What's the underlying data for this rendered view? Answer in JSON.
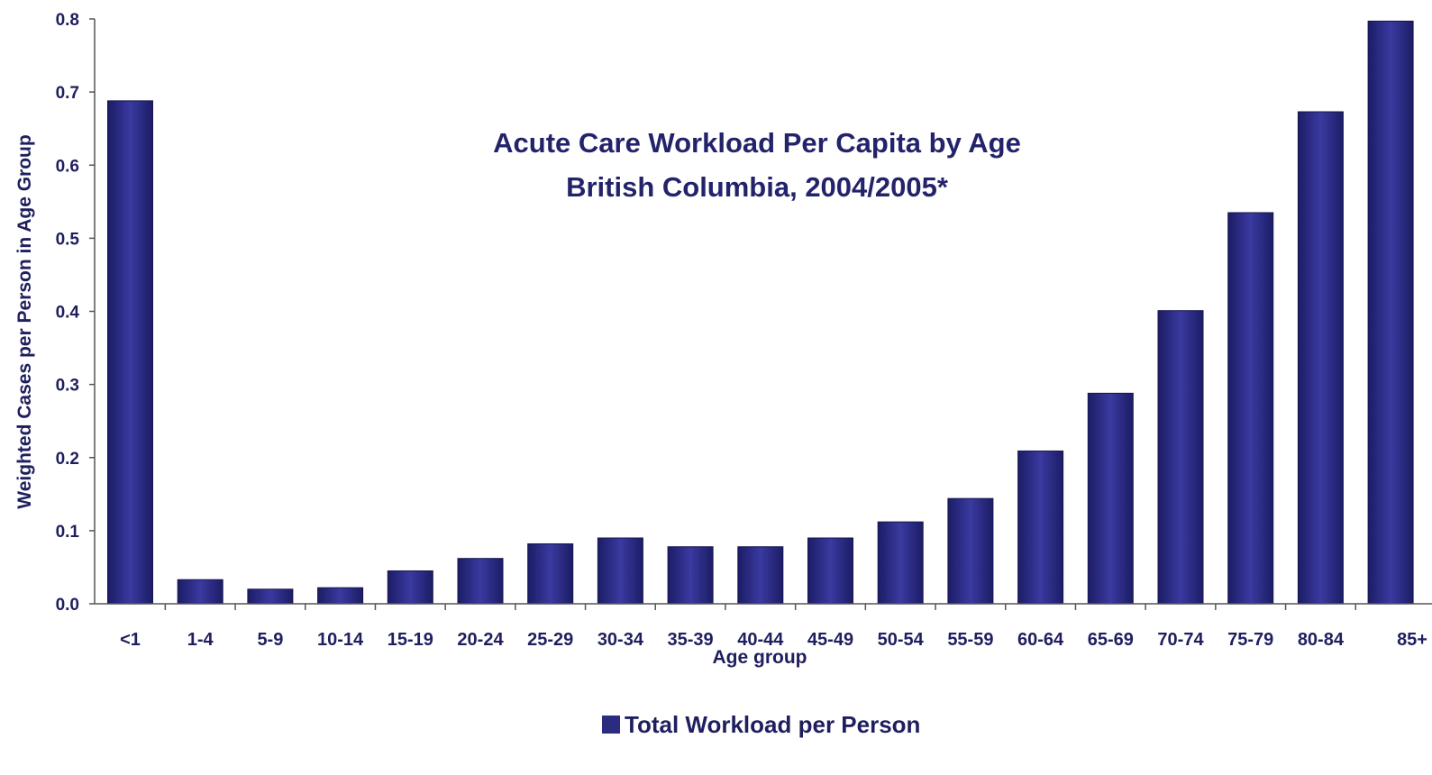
{
  "chart_data": {
    "type": "bar",
    "title": [
      "Acute Care Workload Per Capita by Age",
      "British Columbia, 2004/2005*"
    ],
    "xlabel": "Age group",
    "ylabel": "Weighted Cases per Person in Age Group",
    "ylim": [
      0,
      0.8
    ],
    "yticks": [
      "0.0",
      "0.1",
      "0.2",
      "0.3",
      "0.4",
      "0.5",
      "0.6",
      "0.7",
      "0.8"
    ],
    "grid": false,
    "legend_position": "bottom",
    "categories": [
      "<1",
      "1-4",
      "5-9",
      "10-14",
      "15-19",
      "20-24",
      "25-29",
      "30-34",
      "35-39",
      "40-44",
      "45-49",
      "50-54",
      "55-59",
      "60-64",
      "65-69",
      "70-74",
      "75-79",
      "80-84",
      "85+"
    ],
    "series": [
      {
        "name": "Total Workload per Person",
        "color": "#2b2b80",
        "values": [
          0.688,
          0.033,
          0.02,
          0.022,
          0.045,
          0.062,
          0.082,
          0.09,
          0.078,
          0.078,
          0.09,
          0.112,
          0.144,
          0.209,
          0.288,
          0.401,
          0.535,
          0.673,
          0.797
        ]
      }
    ]
  }
}
